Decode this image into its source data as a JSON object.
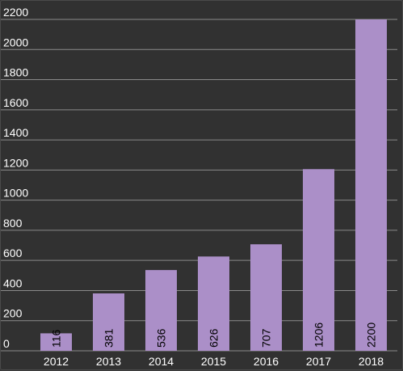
{
  "chart_data": {
    "type": "bar",
    "categories": [
      "2012",
      "2013",
      "2014",
      "2015",
      "2016",
      "2017",
      "2018"
    ],
    "values": [
      116,
      381,
      536,
      626,
      707,
      1206,
      2200
    ],
    "data_labels": [
      "116",
      "381",
      "536",
      "626",
      "707",
      "1206",
      "2200"
    ],
    "y_ticks": [
      "0",
      "200",
      "400",
      "600",
      "800",
      "1000",
      "1200",
      "1400",
      "1600",
      "1800",
      "2000",
      "2200"
    ],
    "ylim": [
      0,
      2200
    ],
    "grid": true,
    "legend": "none",
    "colors": {
      "background": "#313131",
      "bar": "#ab8fc8",
      "grid": "#8a8a8a",
      "axis_text": "#ffffff",
      "data_label": "#000000"
    }
  }
}
